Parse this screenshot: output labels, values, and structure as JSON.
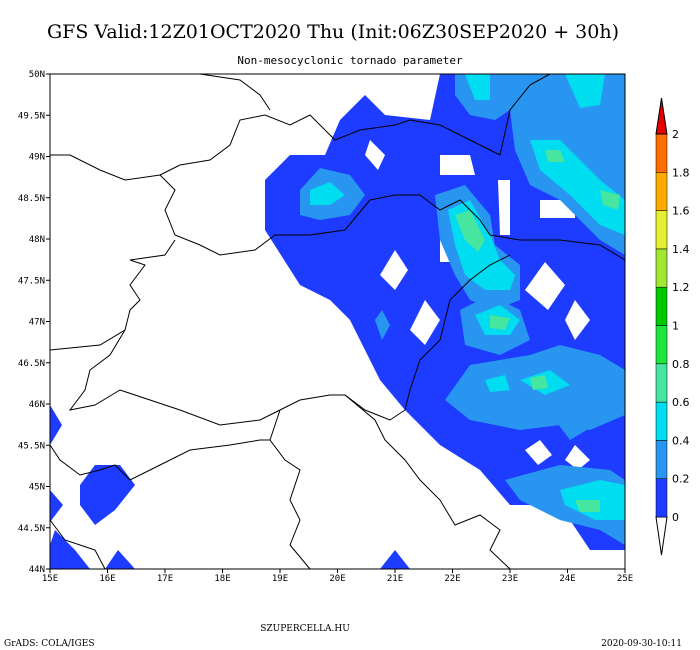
{
  "title": "GFS Valid:12Z01OCT2020 Thu (Init:06Z30SEP2020 + 30h)",
  "subtitle": "Non-mesocyclonic tornado parameter",
  "map": {
    "lon_labels": [
      "15E",
      "16E",
      "17E",
      "18E",
      "19E",
      "20E",
      "21E",
      "22E",
      "23E",
      "24E",
      "25E"
    ],
    "lat_labels": [
      "44N",
      "44.5N",
      "45N",
      "45.5N",
      "46N",
      "46.5N",
      "47N",
      "47.5N",
      "48N",
      "48.5N",
      "49N",
      "49.5N",
      "50N"
    ]
  },
  "colorbar": {
    "labels": [
      0,
      0.2,
      0.4,
      0.6,
      0.8,
      1,
      1.2,
      1.4,
      1.6,
      1.8,
      2
    ],
    "colors": [
      "#1e3cff",
      "#2896f0",
      "#00dcf0",
      "#46e6a0",
      "#1ee63c",
      "#00c800",
      "#a0e632",
      "#e6f032",
      "#ffaa00",
      "#ff6e00",
      "#e60000"
    ]
  },
  "footer": {
    "center": "SZUPERCELLA.HU",
    "left": "GrADS: COLA/IGES",
    "right": "2020-09-30-10:11"
  }
}
